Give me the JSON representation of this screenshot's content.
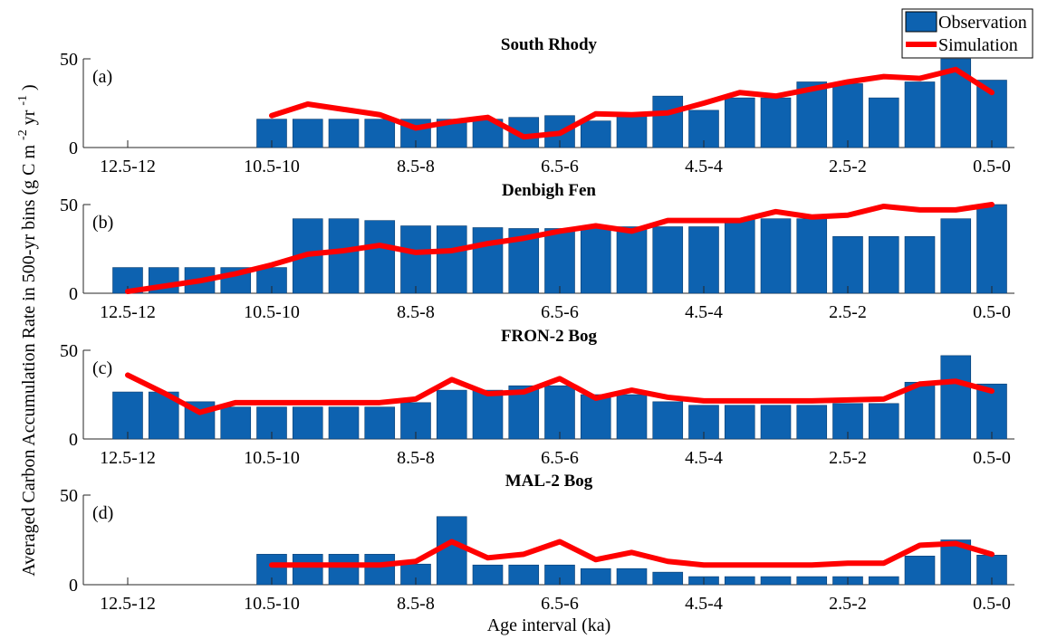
{
  "chart_data": {
    "type": "bar",
    "xlabel": "Age interval (ka)",
    "ylabel": "Averaged Carbon Accumulation Rate in 500-yr bins (g C m",
    "ylabel_sup1": "-2",
    "ylabel_mid": " yr",
    "ylabel_sup2": "-1",
    "ylabel_end": ")",
    "legend": {
      "position": "top-right",
      "observation": "Observation",
      "simulation": "Simulation"
    },
    "colors": {
      "observation": "#0d62b0",
      "simulation": "#ff0000"
    },
    "x_tick_labels": [
      "12.5-12",
      "10.5-10",
      "8.5-8",
      "6.5-6",
      "4.5-4",
      "2.5-2",
      "0.5-0"
    ],
    "panels": [
      {
        "title": "South Rhody",
        "letter": "(a)",
        "ylim": [
          0,
          50
        ],
        "yticks": [
          0,
          50
        ],
        "bins": 25,
        "observation": [
          null,
          null,
          null,
          null,
          16,
          16,
          16,
          16,
          16,
          16,
          16,
          17,
          18,
          15,
          19,
          29,
          21,
          28,
          28,
          37,
          36,
          28,
          37,
          50,
          38
        ],
        "simulation": [
          null,
          null,
          null,
          null,
          18,
          24.5,
          21.5,
          18.5,
          11,
          14.5,
          17,
          6,
          8,
          19,
          18.5,
          19.5,
          25,
          31,
          29,
          33,
          37,
          40,
          39,
          44,
          31
        ]
      },
      {
        "title": "Denbigh Fen",
        "letter": "(b)",
        "ylim": [
          0,
          50
        ],
        "yticks": [
          0,
          50
        ],
        "bins": 25,
        "observation": [
          14.5,
          14.5,
          14.5,
          14.5,
          14.5,
          42,
          42,
          41,
          38,
          38,
          37,
          36.5,
          36.5,
          37.5,
          37.5,
          37.5,
          37.5,
          42,
          42,
          42,
          32,
          32,
          32,
          42,
          50
        ],
        "simulation": [
          1,
          4,
          7,
          11,
          16,
          22,
          24,
          27,
          23,
          24,
          28,
          31,
          35,
          38,
          35,
          41,
          41,
          41,
          46,
          43,
          44,
          49,
          47,
          47,
          50
        ]
      },
      {
        "title": "FRON-2 Bog",
        "letter": "(c)",
        "ylim": [
          0,
          50
        ],
        "yticks": [
          0,
          50
        ],
        "bins": 25,
        "observation": [
          26.5,
          26.5,
          21,
          18,
          18,
          18,
          18,
          18,
          20.5,
          27.5,
          27.5,
          30,
          30,
          25,
          25,
          21,
          19,
          19,
          19,
          19,
          20,
          20,
          32,
          47,
          31
        ],
        "simulation": [
          36,
          26,
          15,
          20.5,
          20.5,
          20.5,
          20.5,
          20.5,
          22.5,
          33.5,
          25.5,
          26.5,
          34,
          23,
          27.5,
          23.5,
          21.5,
          21.5,
          21.5,
          21.5,
          22,
          22.5,
          31,
          32.5,
          27
        ]
      },
      {
        "title": "MAL-2 Bog",
        "letter": "(d)",
        "ylim": [
          0,
          50
        ],
        "yticks": [
          0,
          50
        ],
        "bins": 25,
        "observation": [
          null,
          null,
          null,
          null,
          17,
          17,
          17,
          17,
          11.5,
          38,
          11,
          11,
          11,
          9,
          9,
          7,
          4.5,
          4.5,
          4.5,
          4.5,
          4.5,
          4.5,
          16,
          25,
          16.5
        ],
        "simulation": [
          null,
          null,
          null,
          null,
          11,
          11,
          11,
          11,
          13,
          24,
          15,
          17,
          24,
          14,
          18,
          13,
          11,
          11,
          11,
          11,
          12,
          12,
          22,
          23,
          17
        ]
      }
    ]
  }
}
